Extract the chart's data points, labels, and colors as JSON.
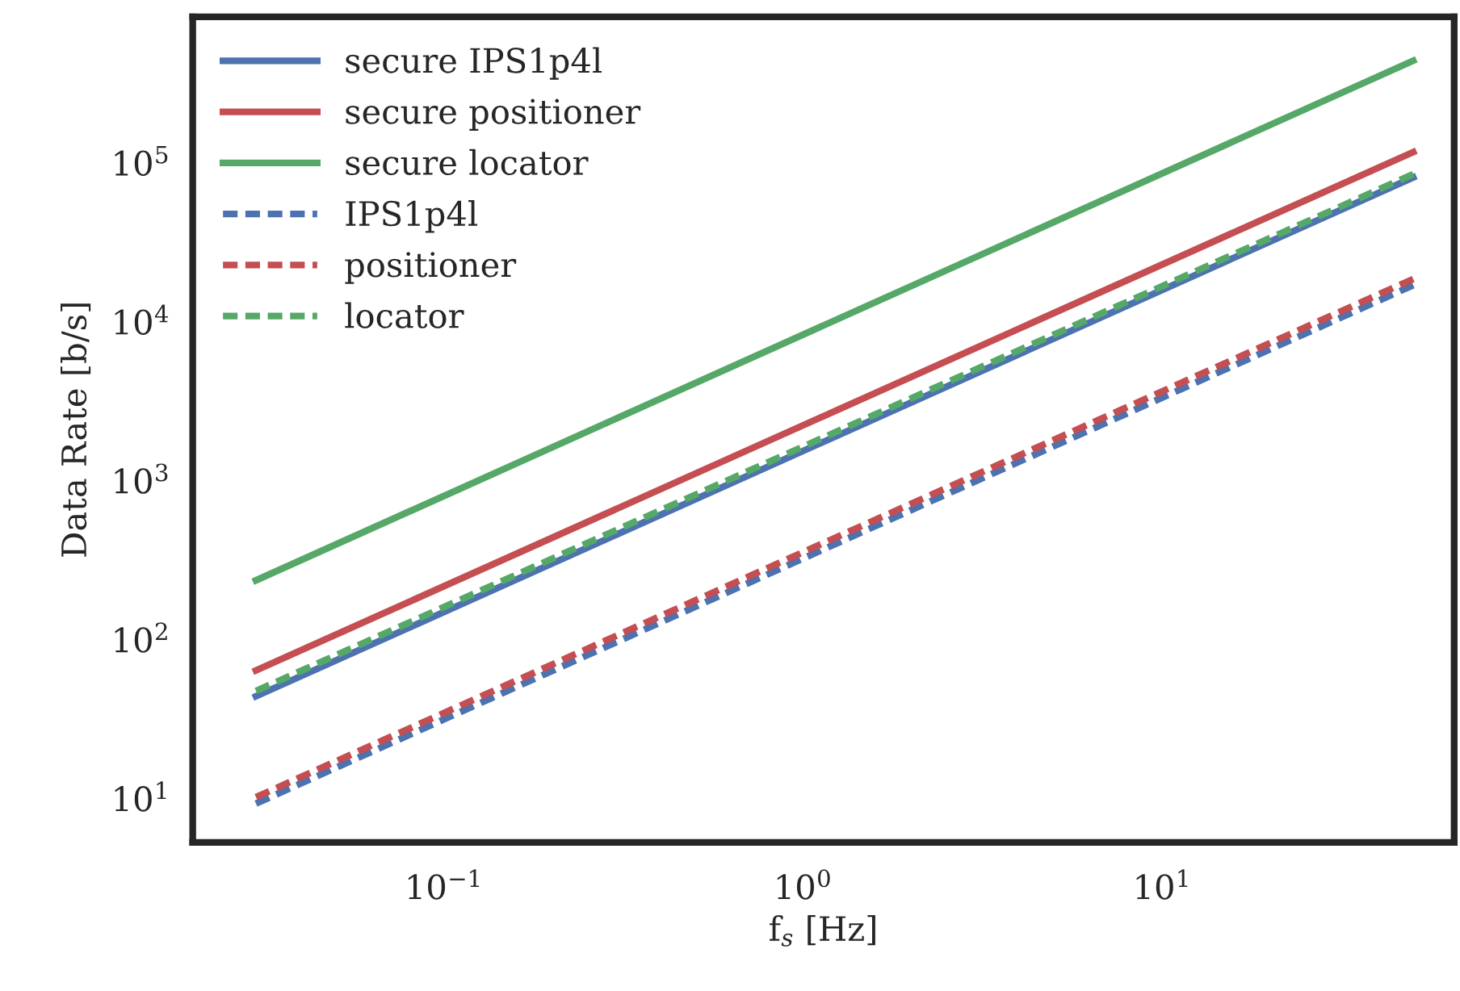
{
  "chart_data": {
    "type": "line",
    "xlabel": "f$_{s}$ [Hz]",
    "ylabel": "Data Rate [b/s]",
    "log": "xy",
    "grid": false,
    "legend": "top left",
    "x": [
      0.03,
      50
    ],
    "xlim": [
      0.02,
      65
    ],
    "ylim": [
      5.3,
      830000
    ],
    "xticks": [
      {
        "value": 0.1,
        "label": "10$^{−1}$"
      },
      {
        "value": 1,
        "label": "10$^{0}$"
      },
      {
        "value": 10,
        "label": "10$^{1}$"
      }
    ],
    "yticks": [
      {
        "value": 10,
        "label": "10$^{1}$"
      },
      {
        "value": 100,
        "label": "10$^{2}$"
      },
      {
        "value": 1000,
        "label": "10$^{3}$"
      },
      {
        "value": 10000,
        "label": "10$^{4}$"
      },
      {
        "value": 100000,
        "label": "10$^{5}$"
      }
    ],
    "series": [
      {
        "name": "secure IPS1p4l",
        "color": "#4c72b0",
        "line_style": "solid",
        "values": [
          44,
          81000
        ]
      },
      {
        "name": "secure positioner",
        "color": "#c44e52",
        "line_style": "solid",
        "values": [
          64,
          117000
        ]
      },
      {
        "name": "secure locator",
        "color": "#55a868",
        "line_style": "solid",
        "values": [
          236,
          440000
        ]
      },
      {
        "name": "IPS1p4l",
        "color": "#4c72b0",
        "line_style": "dashed",
        "values": [
          9.3,
          17000
        ]
      },
      {
        "name": "positioner",
        "color": "#c44e52",
        "line_style": "dashed",
        "values": [
          10.2,
          18600
        ]
      },
      {
        "name": "locator",
        "color": "#55a868",
        "line_style": "dashed",
        "values": [
          47.5,
          85000
        ]
      }
    ]
  }
}
